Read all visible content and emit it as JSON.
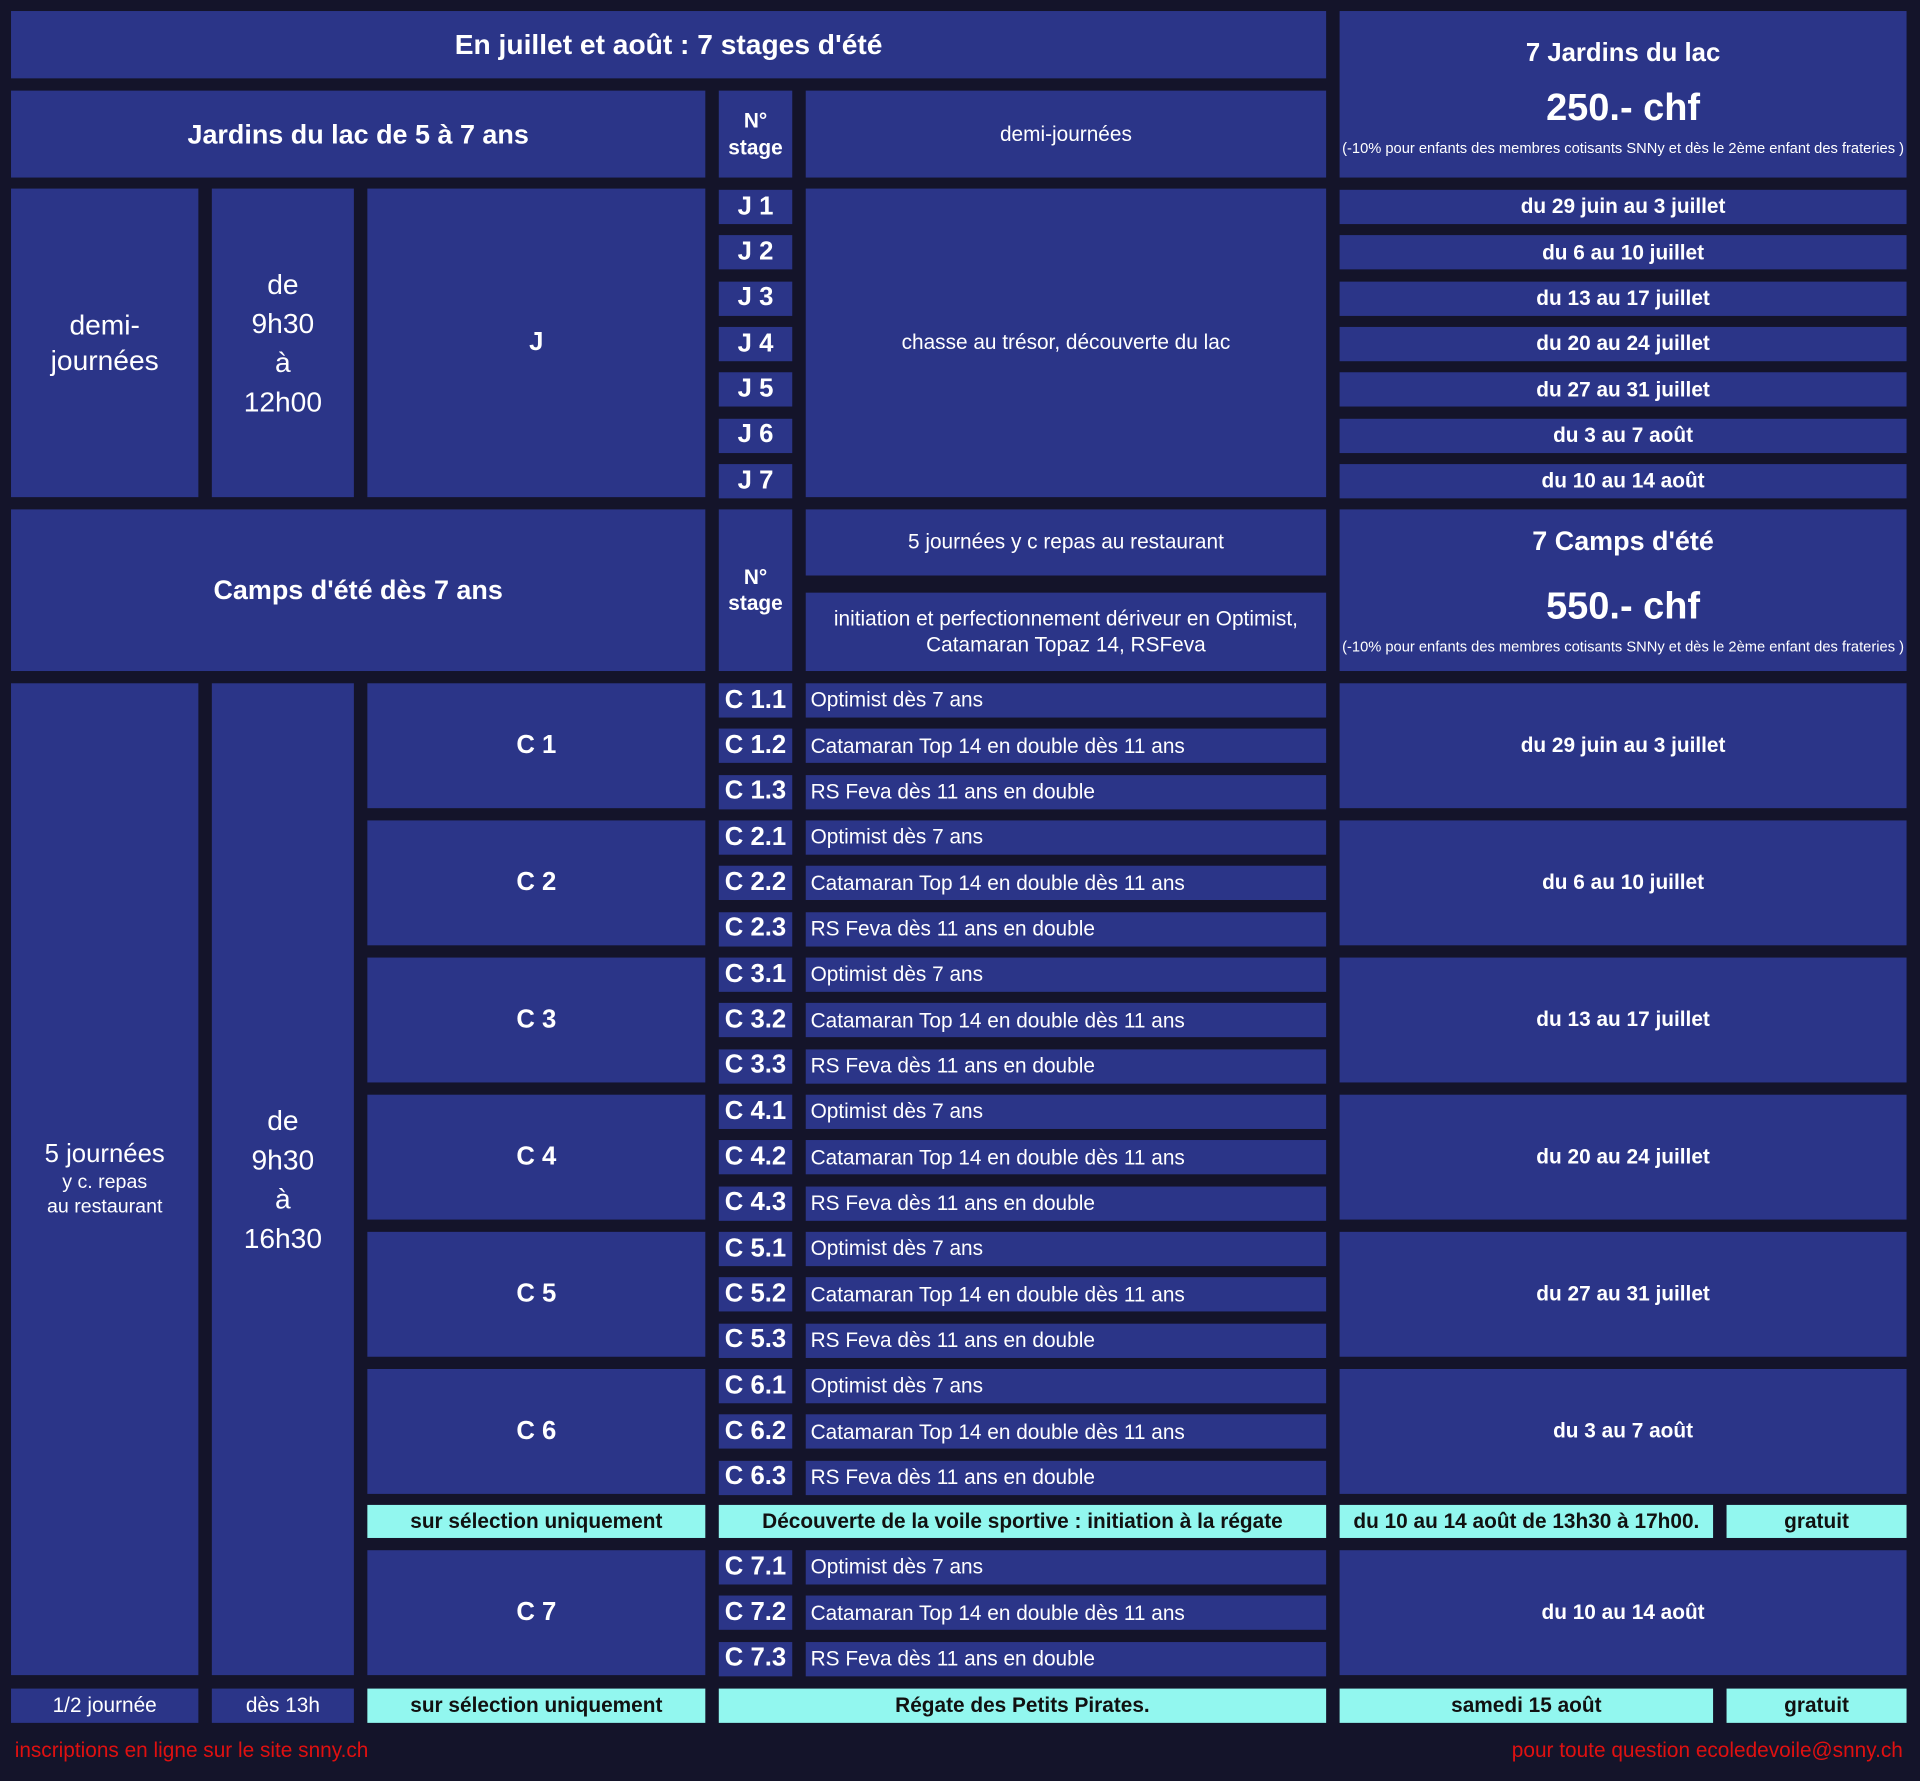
{
  "title": "En juillet et août : 7 stages d'été",
  "jardins": {
    "header": "Jardins du lac de 5 à 7 ans",
    "stage_header": "N°\nstage",
    "type": "demi-journées",
    "duration": "demi-\njournées",
    "hours": "de\n9h30\nà\n12h00",
    "group": "J",
    "activity": "chasse au trésor, découverte du lac",
    "price_title": "7 Jardins du lac",
    "price": "250.- chf",
    "discount": "(-10% pour enfants des membres cotisants SNNy et dès le 2ème enfant des frateries )",
    "stages": [
      {
        "no": "J 1",
        "dates": "du 29 juin au 3 juillet"
      },
      {
        "no": "J 2",
        "dates": "du 6 au 10 juillet"
      },
      {
        "no": "J 3",
        "dates": "du 13 au 17 juillet"
      },
      {
        "no": "J 4",
        "dates": "du 20 au 24 juillet"
      },
      {
        "no": "J 5",
        "dates": "du 27 au 31 juillet"
      },
      {
        "no": "J 6",
        "dates": "du 3 au 7 août"
      },
      {
        "no": "J 7",
        "dates": "du 10 au 14 août"
      }
    ]
  },
  "camps": {
    "header": "Camps d'été  dès 7 ans",
    "stage_header": "N°\nstage",
    "meals": "5 journées y c repas au restaurant",
    "description": "initiation et perfectionnement dériveur en Optimist, Catamaran Topaz 14, RSFeva",
    "price_title": "7  Camps  d'été",
    "price": "550.- chf",
    "discount": "(-10% pour enfants des membres cotisants SNNy et dès le 2ème enfant des frateries )",
    "duration_main": "5 journées",
    "duration_sub": "y c. repas\nau restaurant",
    "hours": "de\n9h30\nà\n16h30",
    "groups": [
      {
        "name": "C 1",
        "dates": "du 29 juin au 3 juillet",
        "stages": [
          {
            "no": "C 1.1",
            "label": "Optimist dès 7 ans"
          },
          {
            "no": "C 1.2",
            "label": "Catamaran Top 14 en double dès 11 ans"
          },
          {
            "no": "C 1.3",
            "label": "RS Feva dès 11 ans en double"
          }
        ]
      },
      {
        "name": "C 2",
        "dates": "du 6 au 10 juillet",
        "stages": [
          {
            "no": "C 2.1",
            "label": "Optimist dès 7 ans"
          },
          {
            "no": "C 2.2",
            "label": "Catamaran Top 14 en double dès 11 ans"
          },
          {
            "no": "C 2.3",
            "label": "RS Feva dès 11 ans en double"
          }
        ]
      },
      {
        "name": "C 3",
        "dates": "du 13 au 17 juillet",
        "stages": [
          {
            "no": "C 3.1",
            "label": "Optimist dès 7 ans"
          },
          {
            "no": "C 3.2",
            "label": "Catamaran Top 14 en double dès 11 ans"
          },
          {
            "no": "C 3.3",
            "label": "RS Feva dès 11 ans en double"
          }
        ]
      },
      {
        "name": "C 4",
        "dates": "du 20 au 24 juillet",
        "stages": [
          {
            "no": "C 4.1",
            "label": "Optimist dès 7 ans"
          },
          {
            "no": "C 4.2",
            "label": "Catamaran Top 14 en double dès 11 ans"
          },
          {
            "no": "C 4.3",
            "label": "RS Feva dès 11 ans en double"
          }
        ]
      },
      {
        "name": "C 5",
        "dates": "du 27 au 31 juillet",
        "stages": [
          {
            "no": "C 5.1",
            "label": "Optimist dès 7 ans"
          },
          {
            "no": "C 5.2",
            "label": "Catamaran Top 14 en double dès 11 ans"
          },
          {
            "no": "C 5.3",
            "label": "RS Feva dès 11 ans en double"
          }
        ]
      },
      {
        "name": "C 6",
        "dates": "du 3 au 7 août",
        "stages": [
          {
            "no": "C 6.1",
            "label": "Optimist dès 7 ans"
          },
          {
            "no": "C 6.2",
            "label": "Catamaran Top 14 en double dès 11 ans"
          },
          {
            "no": "C 6.3",
            "label": "RS Feva dès 11 ans en double"
          }
        ]
      },
      {
        "name": "C 7",
        "dates": "du 10 au 14 août",
        "stages": [
          {
            "no": "C 7.1",
            "label": "Optimist dès 7 ans"
          },
          {
            "no": "C 7.2",
            "label": "Catamaran Top 14 en double dès 11 ans"
          },
          {
            "no": "C 7.3",
            "label": "RS Feva dès 11 ans en double"
          }
        ]
      }
    ]
  },
  "special_1": {
    "selection": "sur sélection uniquement",
    "activity": "Découverte de la voile sportive : initiation à la régate",
    "dates": "du 10 au 14 août de 13h30 à 17h00.",
    "price": "gratuit"
  },
  "special_2": {
    "duration": "1/2 journée",
    "hours": "dès 13h",
    "selection": "sur sélection uniquement",
    "activity": "Régate des Petits  Pirates.",
    "dates": "samedi 15 août",
    "price": "gratuit"
  },
  "footer": {
    "left": "inscriptions en ligne sur le site snny.ch",
    "right": "pour toute question ecoledevoile@snny.ch"
  },
  "colors": {
    "background": "#14142a",
    "cell": "#2b3588",
    "highlight": "#92f7ef",
    "footer_text": "#e01010"
  }
}
